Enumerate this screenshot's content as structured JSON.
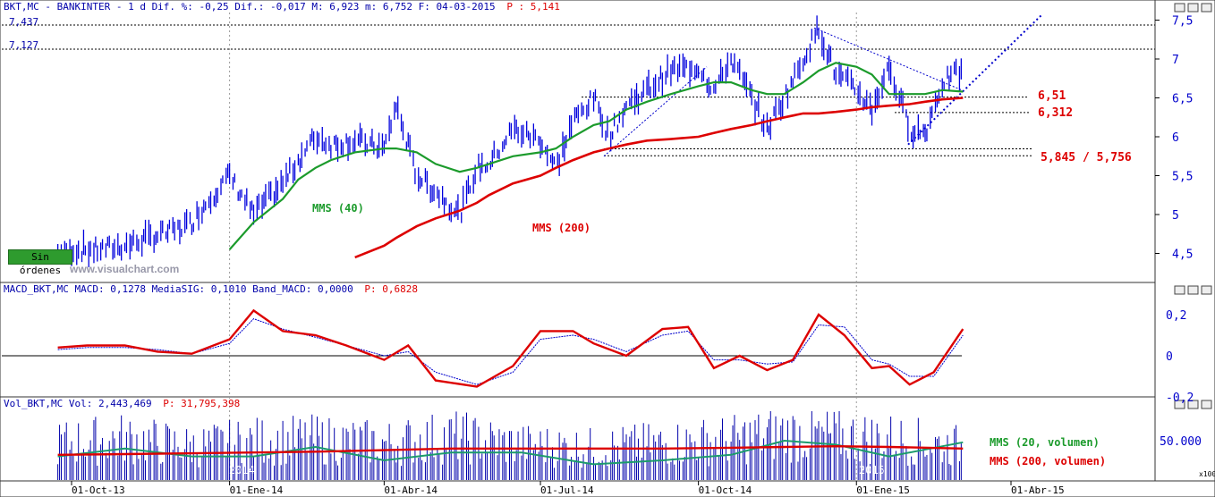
{
  "colors": {
    "price_bars": "#0000dd",
    "mms40": "#1c9b2c",
    "mms200": "#dd0000",
    "macd": "#dd0000",
    "macd_signal": "#0000cc",
    "volume": "#0000aa",
    "vol_mms20": "#1c9b6c",
    "level_label": "#dd0000",
    "header_text": "#0000aa",
    "header_highlight": "#dd0000"
  },
  "price_panel": {
    "header_main": "BKT,MC - BANKINTER -  1 d Dif. %: -0,25 Dif.: -0,017 M: 6,923 m: 6,752 F: 04-03-2015",
    "header_extra": "P : 5,141",
    "levels": {
      "high1": "7,437",
      "high2": "7,127",
      "s1": "6,51",
      "s2": "6,312",
      "s3": "5,845 / 5,756"
    },
    "labels": {
      "mms40": "MMS (40)",
      "mms200": "MMS (200)"
    },
    "watermark": "www.visualchart.com",
    "status_button": "Sin órdenes"
  },
  "macd_panel": {
    "header_main": "MACD_BKT,MC MACD: 0,1278 MediaSIG: 0,1010 Band_MACD: 0,0000",
    "header_extra": "P: 0,6828"
  },
  "volume_panel": {
    "header_main": "Vol_BKT,MC Vol: 2,443,469",
    "header_extra": "P: 31,795,398",
    "labels": {
      "mms20": "MMS (20, volumen)",
      "mms200": "MMS (200, volumen)"
    },
    "scale_unit": "x100"
  },
  "x_axis": {
    "ticks": [
      "01-Oct-13",
      "01-Ene-14",
      "01-Abr-14",
      "01-Jul-14",
      "01-Oct-14",
      "01-Ene-15",
      "01-Abr-15"
    ],
    "year_marks": [
      "2014",
      "2015"
    ]
  },
  "chart_data": [
    {
      "type": "line",
      "title": "BKT,MC - BANKINTER - 1 d",
      "y_ticks": [
        "7,5",
        "7",
        "6,5",
        "6",
        "5,5",
        "5",
        "4,5"
      ],
      "ylim": [
        4.5,
        7.55
      ],
      "x": [
        "2013-09-23",
        "2013-10-01",
        "2013-10-15",
        "2013-11-01",
        "2013-11-15",
        "2013-12-01",
        "2013-12-10",
        "2013-12-20",
        "2014-01-01",
        "2014-01-15",
        "2014-02-01",
        "2014-02-10",
        "2014-02-20",
        "2014-03-01",
        "2014-03-15",
        "2014-04-01",
        "2014-04-08",
        "2014-04-20",
        "2014-05-01",
        "2014-05-15",
        "2014-05-25",
        "2014-06-01",
        "2014-06-15",
        "2014-07-01",
        "2014-07-10",
        "2014-07-20",
        "2014-08-01",
        "2014-08-10",
        "2014-08-20",
        "2014-09-01",
        "2014-09-15",
        "2014-10-01",
        "2014-10-10",
        "2014-10-20",
        "2014-11-01",
        "2014-11-10",
        "2014-11-20",
        "2014-12-01",
        "2014-12-10",
        "2014-12-20",
        "2015-01-01",
        "2015-01-10",
        "2015-01-20",
        "2015-02-01",
        "2015-02-10",
        "2015-02-20",
        "2015-03-04"
      ],
      "series": [
        {
          "name": "BKT,MC",
          "values": [
            4.5,
            4.55,
            4.55,
            4.6,
            4.7,
            4.8,
            4.9,
            5.2,
            5.5,
            5.0,
            5.4,
            5.7,
            6.0,
            5.9,
            5.95,
            5.85,
            6.4,
            5.5,
            5.3,
            5.0,
            5.6,
            5.65,
            6.1,
            5.95,
            5.6,
            6.2,
            6.5,
            6.0,
            6.4,
            6.6,
            6.85,
            6.9,
            6.6,
            7.0,
            6.5,
            6.1,
            6.5,
            7.0,
            7.4,
            6.8,
            6.6,
            6.35,
            6.9,
            6.1,
            6.05,
            6.7,
            6.85
          ]
        },
        {
          "name": "MMS (40)",
          "values": [
            null,
            null,
            null,
            null,
            null,
            null,
            null,
            null,
            4.55,
            4.9,
            5.2,
            5.45,
            5.6,
            5.7,
            5.8,
            5.85,
            5.85,
            5.8,
            5.65,
            5.55,
            5.6,
            5.65,
            5.75,
            5.8,
            5.85,
            6.0,
            6.15,
            6.2,
            6.35,
            6.45,
            6.55,
            6.65,
            6.7,
            6.7,
            6.6,
            6.55,
            6.55,
            6.7,
            6.85,
            6.95,
            6.9,
            6.8,
            6.55,
            6.55,
            6.55,
            6.6,
            6.58
          ]
        },
        {
          "name": "MMS (200)",
          "values": [
            null,
            null,
            null,
            null,
            null,
            null,
            null,
            null,
            null,
            null,
            null,
            null,
            null,
            null,
            4.45,
            4.6,
            4.7,
            4.85,
            4.95,
            5.05,
            5.15,
            5.25,
            5.4,
            5.5,
            5.6,
            5.7,
            5.8,
            5.85,
            5.9,
            5.95,
            5.97,
            6.0,
            6.05,
            6.1,
            6.15,
            6.2,
            6.25,
            6.3,
            6.3,
            6.32,
            6.35,
            6.38,
            6.4,
            6.42,
            6.45,
            6.48,
            6.5
          ]
        }
      ]
    },
    {
      "type": "line",
      "title": "MACD_BKT,MC",
      "y_ticks": [
        "0,2",
        "0",
        "-0,2"
      ],
      "ylim": [
        -0.2,
        0.27
      ],
      "x": [
        "2013-09-23",
        "2013-10-10",
        "2013-11-01",
        "2013-11-20",
        "2013-12-10",
        "2014-01-01",
        "2014-01-15",
        "2014-02-01",
        "2014-02-20",
        "2014-03-10",
        "2014-04-01",
        "2014-04-15",
        "2014-05-01",
        "2014-05-25",
        "2014-06-15",
        "2014-07-01",
        "2014-07-20",
        "2014-08-01",
        "2014-08-20",
        "2014-09-10",
        "2014-09-25",
        "2014-10-10",
        "2014-10-25",
        "2014-11-10",
        "2014-11-25",
        "2014-12-10",
        "2014-12-25",
        "2015-01-10",
        "2015-01-20",
        "2015-02-01",
        "2015-02-15",
        "2015-03-04"
      ],
      "series": [
        {
          "name": "MACD",
          "values": [
            0.04,
            0.05,
            0.05,
            0.02,
            0.01,
            0.08,
            0.22,
            0.12,
            0.1,
            0.05,
            -0.02,
            0.05,
            -0.12,
            -0.15,
            -0.05,
            0.12,
            0.12,
            0.06,
            0.0,
            0.13,
            0.14,
            -0.06,
            0.0,
            -0.07,
            -0.02,
            0.2,
            0.1,
            -0.06,
            -0.05,
            -0.14,
            -0.08,
            0.13
          ]
        },
        {
          "name": "MediaSIG",
          "values": [
            0.03,
            0.04,
            0.04,
            0.03,
            0.01,
            0.06,
            0.18,
            0.13,
            0.09,
            0.05,
            0.0,
            0.02,
            -0.08,
            -0.14,
            -0.08,
            0.08,
            0.1,
            0.08,
            0.02,
            0.1,
            0.12,
            -0.02,
            -0.02,
            -0.04,
            -0.03,
            0.15,
            0.14,
            -0.02,
            -0.04,
            -0.1,
            -0.1,
            0.1
          ]
        }
      ]
    },
    {
      "type": "bar",
      "title": "Vol_BKT,MC",
      "y_ticks": [
        "50.000"
      ],
      "ylim": [
        0,
        100000
      ],
      "x": [
        "2013-09-23",
        "2013-11-01",
        "2013-12-10",
        "2014-01-15",
        "2014-02-20",
        "2014-04-01",
        "2014-05-10",
        "2014-06-20",
        "2014-08-01",
        "2014-09-10",
        "2014-10-20",
        "2014-11-20",
        "2014-12-20",
        "2015-01-20",
        "2015-03-04"
      ],
      "series": [
        {
          "name": "Vol",
          "values": [
            55000,
            62000,
            50000,
            58000,
            60000,
            55000,
            65000,
            52000,
            48000,
            54000,
            60000,
            70000,
            65000,
            62000,
            50000
          ]
        },
        {
          "name": "MMS (20, volumen)",
          "values": [
            30000,
            40000,
            30000,
            30000,
            42000,
            25000,
            35000,
            35000,
            20000,
            25000,
            32000,
            50000,
            45000,
            30000,
            48000
          ]
        },
        {
          "name": "MMS (200, volumen)",
          "values": [
            32000,
            33000,
            34000,
            35000,
            36000,
            38000,
            40000,
            40000,
            40000,
            40000,
            41000,
            42000,
            43000,
            42000,
            40000
          ]
        }
      ]
    }
  ]
}
